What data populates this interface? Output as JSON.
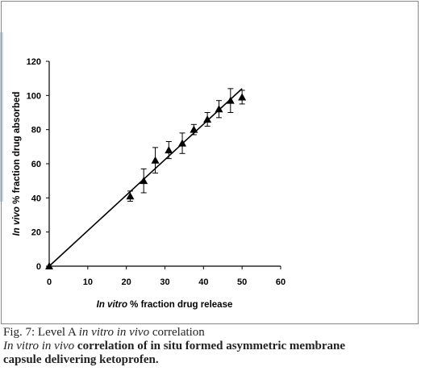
{
  "chart_data": {
    "type": "scatter",
    "xlabel_italic": "In vitro",
    "xlabel_rest": " % fraction drug release",
    "ylabel_italic": "In vivo",
    "ylabel_rest": " % fraction drug absorbed",
    "xlim": [
      0,
      60
    ],
    "ylim": [
      0,
      120
    ],
    "xticks": [
      0,
      10,
      20,
      30,
      40,
      50,
      60
    ],
    "yticks": [
      0,
      20,
      40,
      60,
      80,
      100,
      120
    ],
    "grid": false,
    "series": [
      {
        "marker": "triangle",
        "points": [
          {
            "x": 0,
            "y": 0,
            "err": 0
          },
          {
            "x": 21,
            "y": 41,
            "err": 3
          },
          {
            "x": 24.5,
            "y": 50,
            "err": 7
          },
          {
            "x": 27.5,
            "y": 62,
            "err": 7.5
          },
          {
            "x": 31,
            "y": 68,
            "err": 5
          },
          {
            "x": 34.5,
            "y": 72,
            "err": 6
          },
          {
            "x": 37.5,
            "y": 80,
            "err": 3
          },
          {
            "x": 41,
            "y": 86,
            "err": 4
          },
          {
            "x": 44,
            "y": 92,
            "err": 5
          },
          {
            "x": 47,
            "y": 97,
            "err": 7
          },
          {
            "x": 50,
            "y": 99,
            "err": 4
          }
        ]
      }
    ],
    "fit_line": {
      "x": [
        0,
        50
      ],
      "y": [
        0,
        104
      ]
    }
  },
  "caption": {
    "fig_label": "Fig. 7: Level A ",
    "fig_ital": "in vitro in vivo",
    "fig_rest": " correlation",
    "desc_ital": "In vitro in vivo",
    "desc_rest": " correlation of in situ formed asymmetric membrane",
    "desc_line2": "capsule delivering ketoprofen."
  }
}
